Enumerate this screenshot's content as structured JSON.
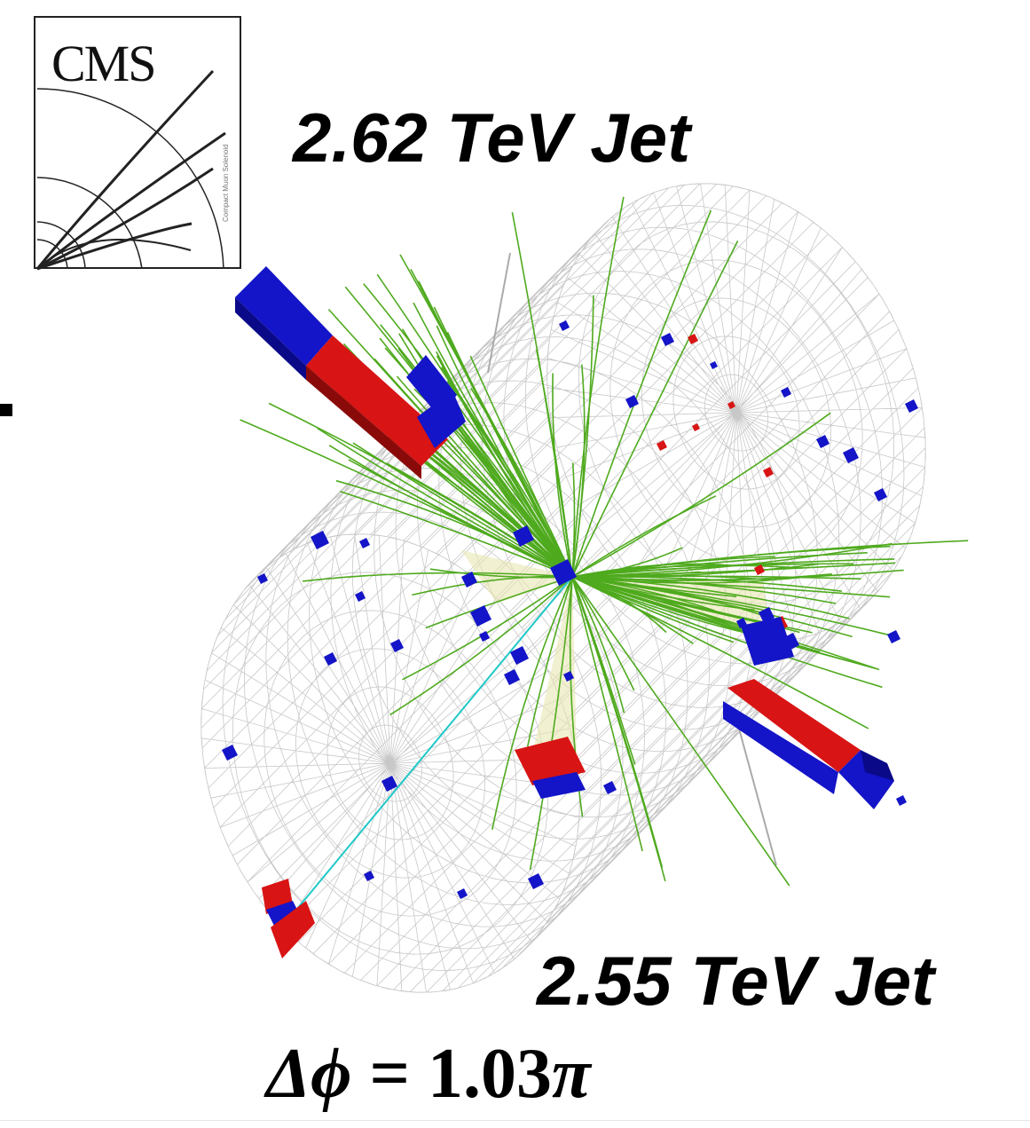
{
  "logo": {
    "text": "CMS",
    "tagline": "Compact Muon Solenoid"
  },
  "labels": {
    "jet1": "2.62 TeV Jet",
    "jet2": "2.55 TeV Jet"
  },
  "formula": {
    "prefix": "Δϕ",
    "equals": " = ",
    "value": "1.03",
    "suffix": "π"
  },
  "colors": {
    "hcal": "#1414c8",
    "ecal": "#d81414",
    "tracks": "#4faa1e",
    "muon_track": "#20c8c8",
    "wireframe": "#c8c8c8",
    "jet_cone": "#e8e6b0"
  }
}
